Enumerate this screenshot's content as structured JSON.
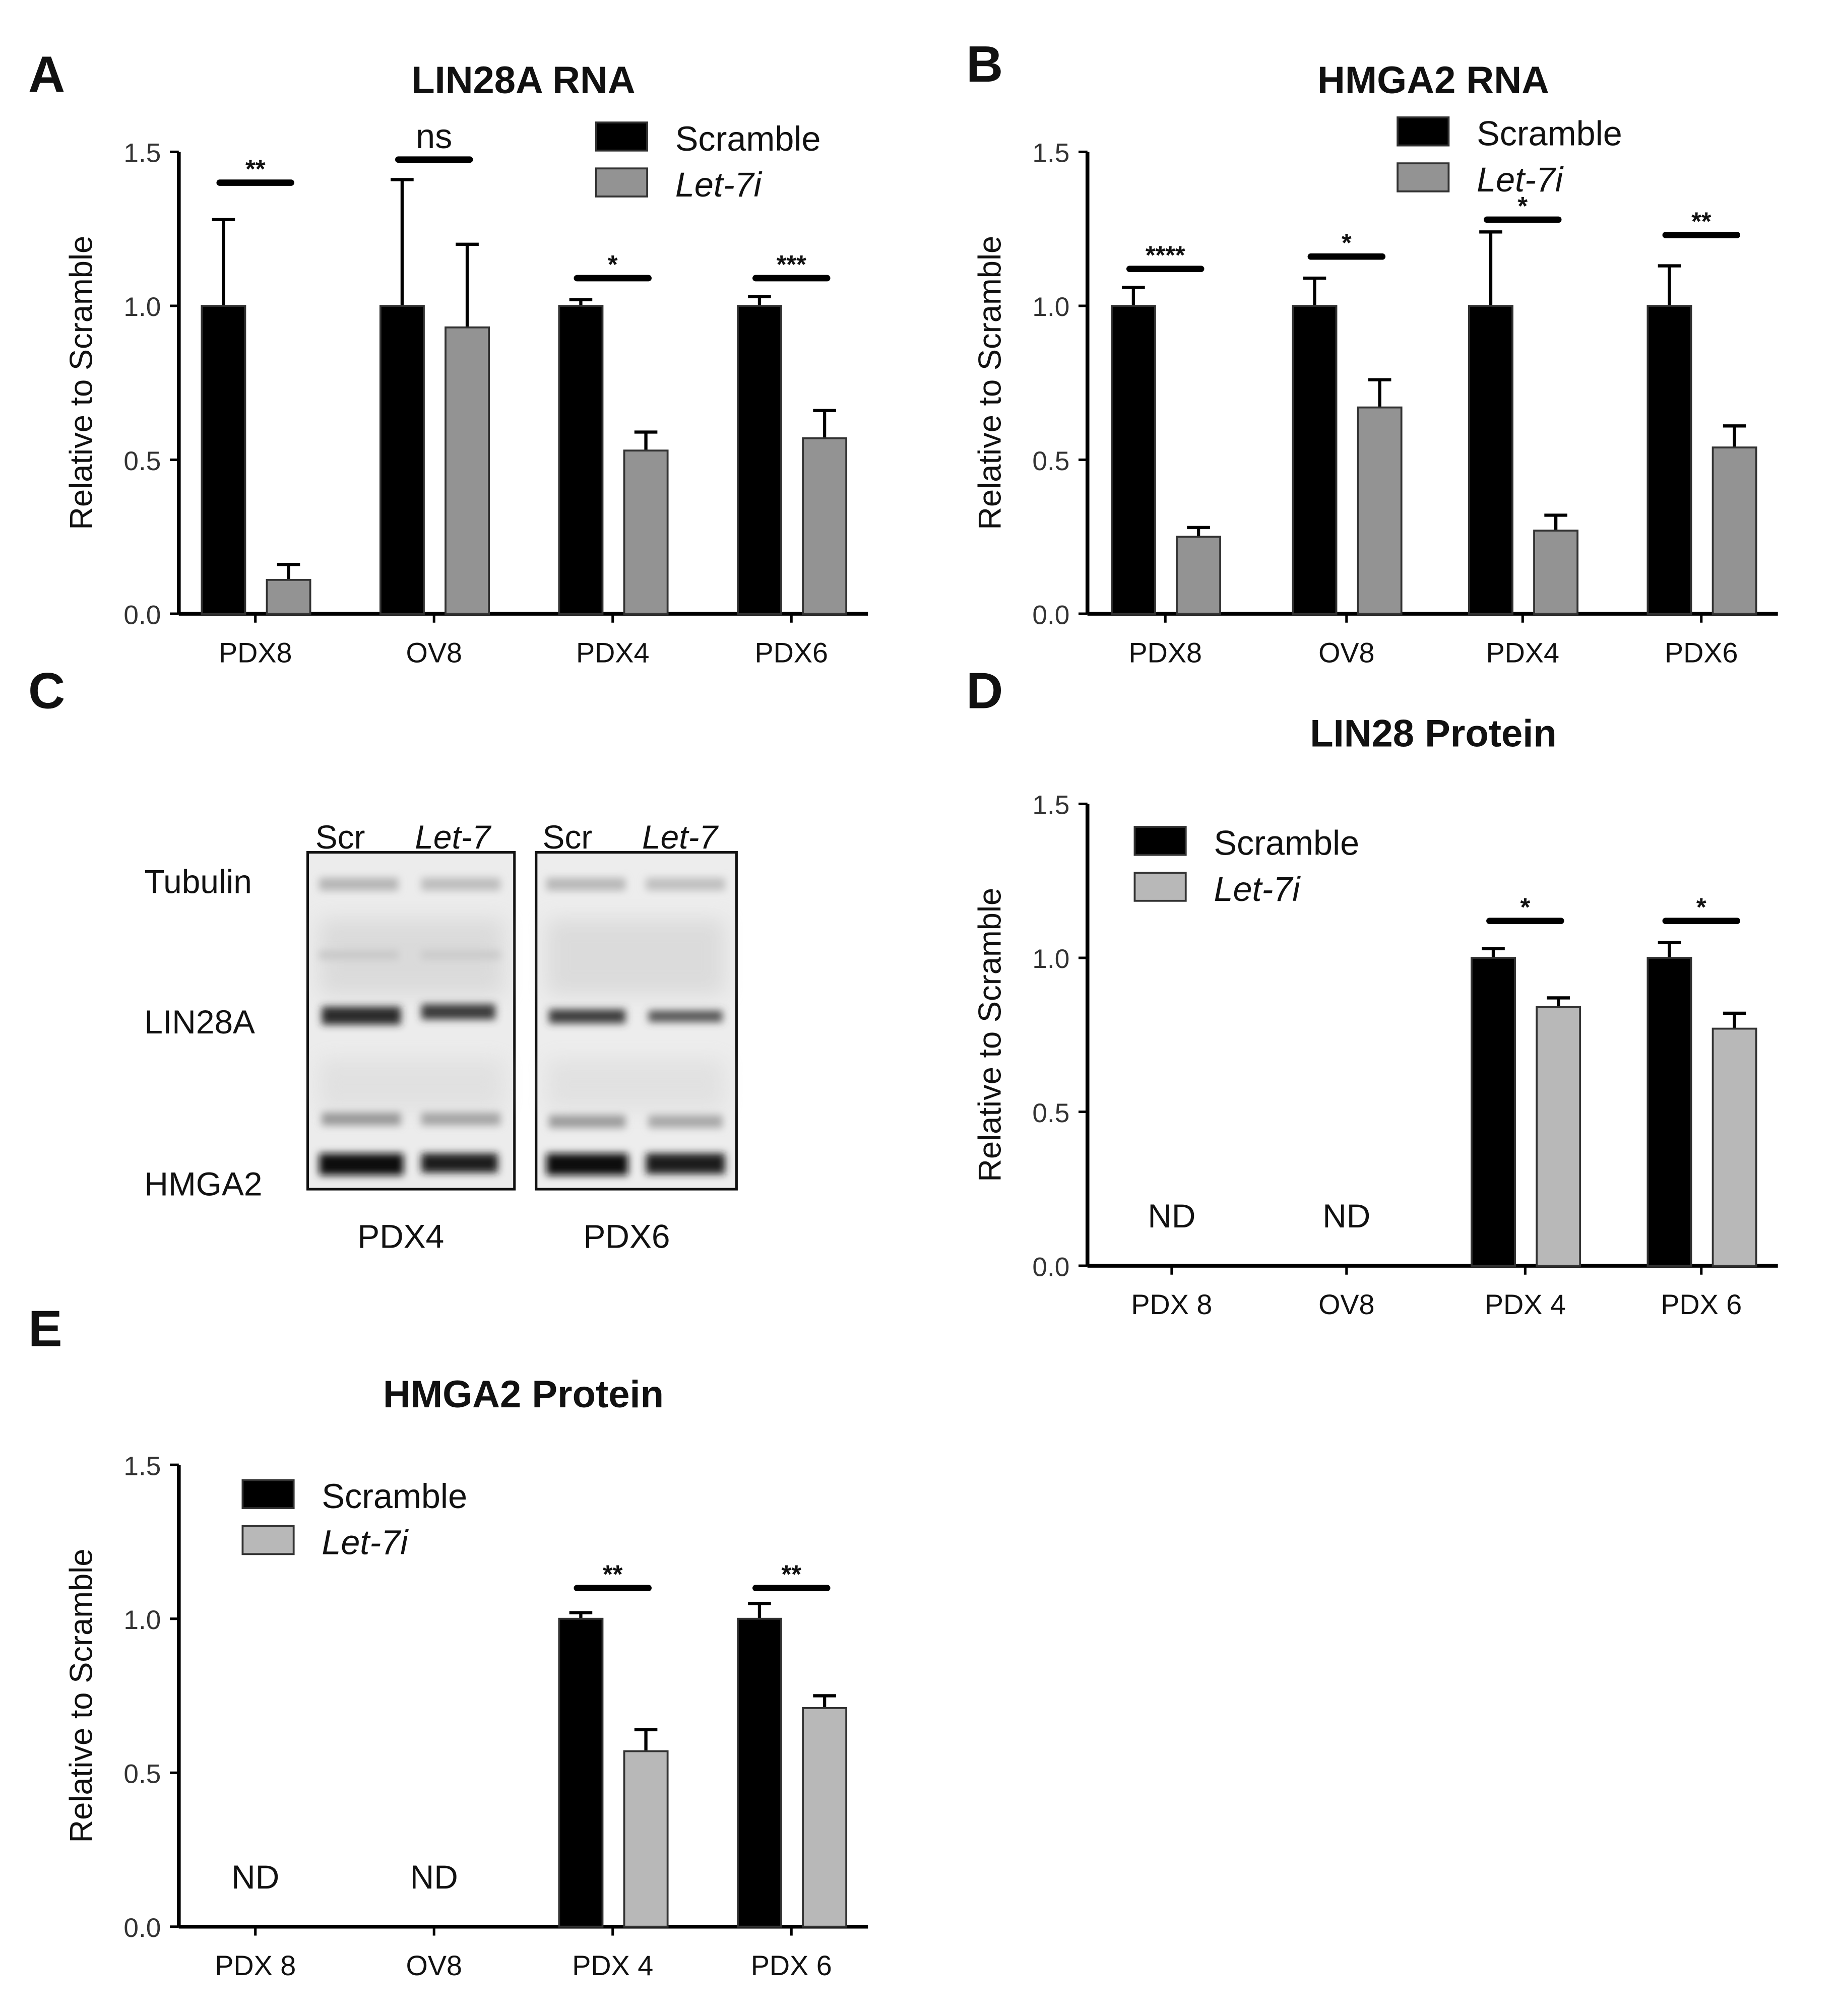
{
  "panels": {
    "A": "A",
    "B": "B",
    "C": "C",
    "D": "D",
    "E": "E"
  },
  "legend": {
    "scramble": "Scramble",
    "let7i": "Let-7i"
  },
  "colors": {
    "scramble": "#000000",
    "let7i_rna": "#939393",
    "let7i_protein": "#b8b8b8"
  },
  "blot": {
    "lane_labels": [
      "Scr",
      "Let-7",
      "Scr",
      "Let-7"
    ],
    "row_labels": [
      "Tubulin",
      "LIN28A",
      "HMGA2"
    ],
    "group_labels": [
      "PDX4",
      "PDX6"
    ]
  },
  "chart_data": [
    {
      "id": "A",
      "type": "bar",
      "title": "LIN28A RNA",
      "ylabel": "Relative to Scramble",
      "xlabel": "",
      "ylim": [
        0,
        1.5
      ],
      "yticks": [
        "0.0",
        "0.5",
        "1.0",
        "1.5"
      ],
      "grid": false,
      "legend_position": "top-right",
      "categories": [
        "PDX8",
        "OV8",
        "PDX4",
        "PDX6"
      ],
      "series": [
        {
          "name": "Scramble",
          "values": [
            1.0,
            1.0,
            1.0,
            1.0
          ],
          "error": [
            0.28,
            0.41,
            0.02,
            0.03
          ]
        },
        {
          "name": "Let-7i",
          "values": [
            0.11,
            0.93,
            0.53,
            0.57
          ],
          "error": [
            0.05,
            0.27,
            0.06,
            0.09
          ]
        }
      ],
      "significance": [
        {
          "label": "**",
          "y": 1.4
        },
        {
          "label": "ns",
          "y": 1.475
        },
        {
          "label": "*",
          "y": 1.09
        },
        {
          "label": "***",
          "y": 1.09
        }
      ],
      "nd": []
    },
    {
      "id": "B",
      "type": "bar",
      "title": "HMGA2 RNA",
      "ylabel": "Relative to Scramble",
      "xlabel": "",
      "ylim": [
        0,
        1.5
      ],
      "yticks": [
        "0.0",
        "0.5",
        "1.0",
        "1.5"
      ],
      "grid": false,
      "legend_position": "top-right",
      "categories": [
        "PDX8",
        "OV8",
        "PDX4",
        "PDX6"
      ],
      "series": [
        {
          "name": "Scramble",
          "values": [
            1.0,
            1.0,
            1.0,
            1.0
          ],
          "error": [
            0.06,
            0.09,
            0.24,
            0.13
          ]
        },
        {
          "name": "Let-7i",
          "values": [
            0.25,
            0.67,
            0.27,
            0.54
          ],
          "error": [
            0.03,
            0.09,
            0.05,
            0.07
          ]
        }
      ],
      "significance": [
        {
          "label": "****",
          "y": 1.12
        },
        {
          "label": "*",
          "y": 1.16
        },
        {
          "label": "*",
          "y": 1.28
        },
        {
          "label": "**",
          "y": 1.23
        }
      ],
      "nd": []
    },
    {
      "id": "D",
      "type": "bar",
      "title": "LIN28 Protein",
      "ylabel": "Relative to Scramble",
      "xlabel": "",
      "ylim": [
        0,
        1.5
      ],
      "yticks": [
        "0.0",
        "0.5",
        "1.0",
        "1.5"
      ],
      "grid": false,
      "legend_position": "top-left",
      "categories": [
        "PDX 8",
        "OV8",
        "PDX 4",
        "PDX 6"
      ],
      "series": [
        {
          "name": "Scramble",
          "values": [
            null,
            null,
            1.0,
            1.0
          ],
          "error": [
            null,
            null,
            0.03,
            0.05
          ]
        },
        {
          "name": "Let-7i",
          "values": [
            null,
            null,
            0.84,
            0.77
          ],
          "error": [
            null,
            null,
            0.03,
            0.05
          ]
        }
      ],
      "significance": [
        null,
        null,
        {
          "label": "*",
          "y": 1.12
        },
        {
          "label": "*",
          "y": 1.12
        }
      ],
      "nd": [
        "ND",
        "ND",
        null,
        null
      ]
    },
    {
      "id": "E",
      "type": "bar",
      "title": "HMGA2 Protein",
      "ylabel": "Relative to Scramble",
      "xlabel": "",
      "ylim": [
        0,
        1.5
      ],
      "yticks": [
        "0.0",
        "0.5",
        "1.0",
        "1.5"
      ],
      "grid": false,
      "legend_position": "top-left",
      "categories": [
        "PDX 8",
        "OV8",
        "PDX 4",
        "PDX 6"
      ],
      "series": [
        {
          "name": "Scramble",
          "values": [
            null,
            null,
            1.0,
            1.0
          ],
          "error": [
            null,
            null,
            0.02,
            0.05
          ]
        },
        {
          "name": "Let-7i",
          "values": [
            null,
            null,
            0.57,
            0.71
          ],
          "error": [
            null,
            null,
            0.07,
            0.04
          ]
        }
      ],
      "significance": [
        null,
        null,
        {
          "label": "**",
          "y": 1.1
        },
        {
          "label": "**",
          "y": 1.1
        }
      ],
      "nd": [
        "ND",
        "ND",
        null,
        null
      ]
    }
  ]
}
